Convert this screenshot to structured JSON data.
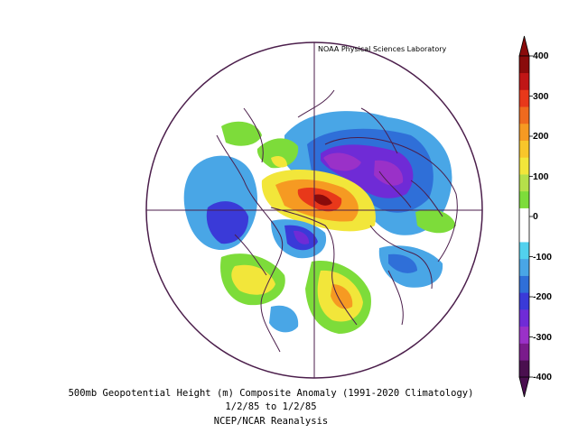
{
  "credit": "NOAA Physical Sciences Laboratory",
  "caption": {
    "line1": "500mb Geopotential Height (m) Composite Anomaly (1991-2020 Climatology)",
    "line2": "1/2/85  to 1/2/85",
    "line3": "NCEP/NCAR Reanalysis"
  },
  "colorbar": {
    "levels": [
      {
        "value": 400,
        "label": "400"
      },
      {
        "value": 300,
        "label": "300"
      },
      {
        "value": 200,
        "label": "200"
      },
      {
        "value": 100,
        "label": "100"
      },
      {
        "value": 0,
        "label": "0"
      },
      {
        "value": -100,
        "label": "-100"
      },
      {
        "value": -200,
        "label": "-200"
      },
      {
        "value": -300,
        "label": "-300"
      },
      {
        "value": -400,
        "label": "-400"
      }
    ],
    "colors": [
      "#4a0f4f",
      "#7a1b8c",
      "#9a31c8",
      "#6f2bd6",
      "#3a3ad8",
      "#2f6fd8",
      "#49a6e6",
      "#52d1ee",
      "#ffffff",
      "#ffffff",
      "#7ddc3a",
      "#b5e04a",
      "#f2e63a",
      "#f8c62a",
      "#f69a22",
      "#ef6a1e",
      "#e8381a",
      "#c01616",
      "#8a0b0b"
    ]
  },
  "colors": {
    "border": "#4b1e4b",
    "frame": "#4b1e4b"
  }
}
